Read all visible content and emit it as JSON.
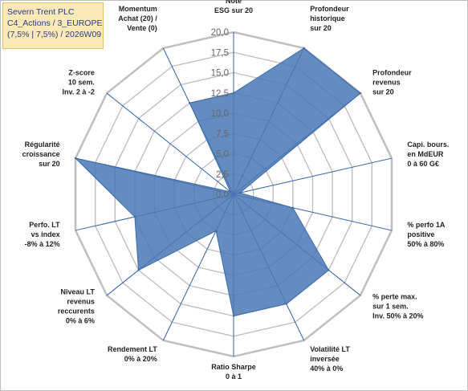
{
  "title_lines": [
    "Severn Trent PLC",
    "C4_Actions / 3_EUROPE",
    "(7,5% | 7,5%) / 2026W09"
  ],
  "chart_data": {
    "type": "radar",
    "rmin": 0,
    "rmax": 20,
    "tick_step": 2.5,
    "grid": true,
    "tick_labels": [
      "0,0",
      "2,5",
      "5,0",
      "7,5",
      "10,0",
      "12,5",
      "15,0",
      "17,5",
      "20,0"
    ],
    "axes": [
      {
        "label": [
          "Note",
          "ESG sur 20"
        ],
        "value": 12.5
      },
      {
        "label": [
          "Profondeur",
          "historique",
          "sur 20"
        ],
        "value": 20
      },
      {
        "label": [
          "Profondeur",
          "revenus",
          "sur 20"
        ],
        "value": 20
      },
      {
        "label": [
          "Capi. bours.",
          "en MdEUR",
          "0 à 60 G€"
        ],
        "value": 0.8
      },
      {
        "label": [
          "% perfo 1A",
          "positive",
          "50% à 80%"
        ],
        "value": 7.5
      },
      {
        "label": [
          "% perte max.",
          "sur 1 sem.",
          "Inv. 50% à 20%"
        ],
        "value": 15
      },
      {
        "label": [
          "Volatilité LT",
          "inversée",
          "40% à 0%"
        ],
        "value": 15
      },
      {
        "label": [
          "Ratio Sharpe",
          "0 à 1"
        ],
        "value": 15
      },
      {
        "label": [
          "Rendement LT",
          "0% à 20%"
        ],
        "value": 5
      },
      {
        "label": [
          "Niveau LT",
          "revenus",
          "reccurents",
          "0% à 6%"
        ],
        "value": 15
      },
      {
        "label": [
          "Perfo. LT",
          "vs index",
          "-8% à 12%"
        ],
        "value": 12.5
      },
      {
        "label": [
          "Régularité",
          "croissance",
          "sur 20"
        ],
        "value": 20
      },
      {
        "label": [
          "Z-score",
          "10 sem.",
          "Inv. 2 à -2"
        ],
        "value": 0.5
      },
      {
        "label": [
          "Momentum",
          "Achat (20) /",
          "Vente (0)"
        ],
        "value": 12.5
      }
    ],
    "colors": {
      "fill": "#4a78b5",
      "stroke": "#3d6aa8",
      "grid": "#bfbfbf",
      "spoke": "#2f5fae"
    }
  }
}
